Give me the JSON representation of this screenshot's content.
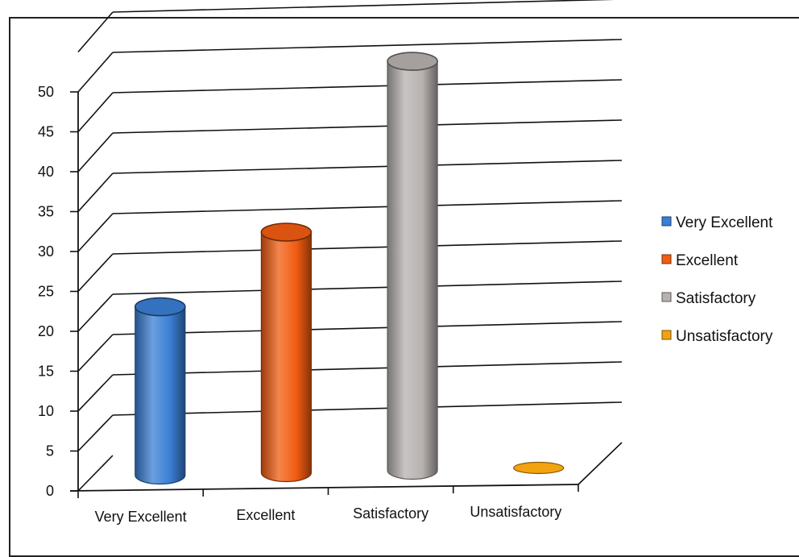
{
  "chart_data": {
    "type": "bar",
    "style": "3d-cylinder",
    "categories": [
      "Very Excellent",
      "Excellent",
      "Satisfactory",
      "Unsatisfactory"
    ],
    "values": [
      21,
      30,
      51,
      0
    ],
    "colors": [
      "#3a7fd4",
      "#f25c12",
      "#b7b2b0",
      "#f3a30f"
    ],
    "ylim": [
      0,
      50
    ],
    "yticks": [
      "0",
      "5",
      "10",
      "15",
      "20",
      "25",
      "30",
      "35",
      "40",
      "45",
      "50"
    ],
    "grid": true,
    "legend": {
      "position": "right",
      "entries": [
        "Very Excellent",
        "Excellent",
        "Satisfactory",
        "Unsatisfactory"
      ]
    },
    "title": "",
    "xlabel": "",
    "ylabel": ""
  }
}
